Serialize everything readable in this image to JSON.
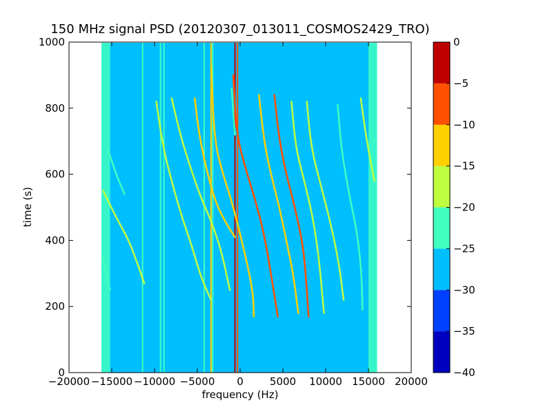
{
  "chart_data": {
    "type": "heatmap",
    "title": "150 MHz signal PSD (20120307_013011_COSMOS2429_TRO)",
    "xlabel": "frequency (Hz)",
    "ylabel": "time (s)",
    "xlim": [
      -20000,
      20000
    ],
    "ylim": [
      0,
      1000
    ],
    "x_ticks": [
      "−20000",
      "−15000",
      "−10000",
      "−5000",
      "0",
      "5000",
      "10000",
      "15000",
      "20000"
    ],
    "x_tick_values": [
      -20000,
      -15000,
      -10000,
      -5000,
      0,
      5000,
      10000,
      15000,
      20000
    ],
    "y_ticks": [
      "0",
      "200",
      "400",
      "600",
      "800",
      "1000"
    ],
    "y_tick_values": [
      0,
      200,
      400,
      600,
      800,
      1000
    ],
    "colorbar": {
      "ticks": [
        "0",
        "−5",
        "−10",
        "−15",
        "−20",
        "−25",
        "−30",
        "−35",
        "−40"
      ],
      "tick_values": [
        0,
        -5,
        -10,
        -15,
        -20,
        -25,
        -30,
        -35,
        -40
      ],
      "levels": [
        {
          "min": -40,
          "max": -35,
          "color": "#0000bf"
        },
        {
          "min": -35,
          "max": -30,
          "color": "#0040ff"
        },
        {
          "min": -30,
          "max": -25,
          "color": "#00bfff"
        },
        {
          "min": -25,
          "max": -20,
          "color": "#40ffbf"
        },
        {
          "min": -20,
          "max": -15,
          "color": "#bfff40"
        },
        {
          "min": -15,
          "max": -10,
          "color": "#ffd000"
        },
        {
          "min": -10,
          "max": -5,
          "color": "#ff5000"
        },
        {
          "min": -5,
          "max": 0,
          "color": "#bf0000"
        }
      ]
    },
    "band": {
      "xmin": -16200,
      "xmax": 16000,
      "background_level": -27.5,
      "edge_level": -22.5,
      "edge_width_hz": 1000
    },
    "vertical_lines": [
      {
        "x": -11400,
        "level": -22,
        "y0": 0,
        "y1": 1000
      },
      {
        "x": -9300,
        "level": -20,
        "y0": 0,
        "y1": 1000
      },
      {
        "x": -8900,
        "level": -23,
        "y0": 0,
        "y1": 1000
      },
      {
        "x": -4200,
        "level": -23,
        "y0": 0,
        "y1": 1000
      },
      {
        "x": -3400,
        "level": -13,
        "y0": 0,
        "y1": 1000
      },
      {
        "x": -3200,
        "level": -22,
        "y0": 0,
        "y1": 1000
      },
      {
        "x": -600,
        "level": -3,
        "y0": 0,
        "y1": 1000
      },
      {
        "x": -300,
        "level": -8,
        "y0": 0,
        "y1": 1000
      }
    ],
    "tracks": [
      {
        "points": [
          [
            -16000,
            550
          ],
          [
            -14500,
            470
          ],
          [
            -13000,
            400
          ],
          [
            -12000,
            330
          ],
          [
            -11200,
            270
          ]
        ],
        "level": -18
      },
      {
        "points": [
          [
            -16000,
            340
          ],
          [
            -15200,
            250
          ]
        ],
        "level": -20
      },
      {
        "points": [
          [
            -15500,
            680
          ],
          [
            -14500,
            600
          ],
          [
            -13500,
            540
          ]
        ],
        "level": -20
      },
      {
        "points": [
          [
            -9800,
            820
          ],
          [
            -9000,
            680
          ],
          [
            -7800,
            560
          ],
          [
            -6800,
            470
          ],
          [
            -5600,
            380
          ],
          [
            -4600,
            290
          ],
          [
            -3400,
            220
          ]
        ],
        "level": -18
      },
      {
        "points": [
          [
            -8000,
            830
          ],
          [
            -7000,
            720
          ],
          [
            -5800,
            620
          ],
          [
            -4600,
            530
          ],
          [
            -3400,
            460
          ],
          [
            -2200,
            370
          ],
          [
            -1200,
            250
          ]
        ],
        "level": -17
      },
      {
        "points": [
          [
            -5300,
            830
          ],
          [
            -4800,
            720
          ],
          [
            -3800,
            600
          ],
          [
            -2800,
            510
          ],
          [
            -1600,
            450
          ],
          [
            -600,
            410
          ]
        ],
        "level": -12
      },
      {
        "points": [
          [
            -3400,
            930
          ],
          [
            -3000,
            700
          ],
          [
            -2000,
            600
          ],
          [
            -1000,
            520
          ],
          [
            200,
            400
          ],
          [
            1500,
            250
          ],
          [
            1600,
            170
          ]
        ],
        "level": -14
      },
      {
        "points": [
          [
            -800,
            900
          ],
          [
            -400,
            720
          ],
          [
            600,
            620
          ],
          [
            1800,
            520
          ],
          [
            2800,
            420
          ],
          [
            3600,
            300
          ],
          [
            4400,
            170
          ]
        ],
        "level": -5
      },
      {
        "points": [
          [
            -1000,
            860
          ],
          [
            -600,
            720
          ]
        ],
        "level": -22
      },
      {
        "points": [
          [
            2200,
            840
          ],
          [
            2800,
            700
          ],
          [
            3600,
            600
          ],
          [
            4600,
            500
          ],
          [
            5400,
            400
          ],
          [
            6200,
            300
          ],
          [
            6800,
            180
          ]
        ],
        "level": -14
      },
      {
        "points": [
          [
            4000,
            840
          ],
          [
            4600,
            700
          ],
          [
            5400,
            600
          ],
          [
            6400,
            500
          ],
          [
            7400,
            380
          ],
          [
            7800,
            250
          ],
          [
            8000,
            170
          ]
        ],
        "level": -8
      },
      {
        "points": [
          [
            6000,
            820
          ],
          [
            6500,
            680
          ],
          [
            7500,
            580
          ],
          [
            8500,
            470
          ],
          [
            9200,
            350
          ],
          [
            9800,
            180
          ]
        ],
        "level": -15
      },
      {
        "points": [
          [
            7800,
            820
          ],
          [
            8300,
            680
          ],
          [
            9500,
            560
          ],
          [
            10500,
            460
          ],
          [
            11500,
            340
          ],
          [
            12100,
            220
          ]
        ],
        "level": -17
      },
      {
        "points": [
          [
            11400,
            810
          ],
          [
            11900,
            660
          ],
          [
            12900,
            520
          ]
        ],
        "level": -20
      },
      {
        "points": [
          [
            12900,
            520
          ],
          [
            13700,
            420
          ],
          [
            14200,
            300
          ],
          [
            14300,
            190
          ]
        ],
        "level": -20
      },
      {
        "points": [
          [
            14100,
            830
          ],
          [
            14800,
            700
          ],
          [
            15700,
            580
          ]
        ],
        "level": -18
      }
    ]
  }
}
